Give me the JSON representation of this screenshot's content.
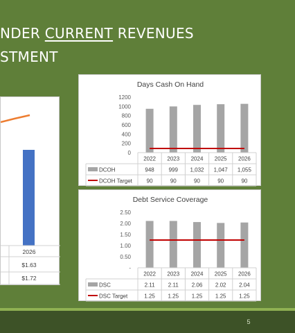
{
  "slide": {
    "title_line1_prefix": "NDER ",
    "title_line1_underlined": "CURRENT",
    "title_line1_suffix": " REVENUES",
    "title_line2": "STMENT",
    "page_number": "5"
  },
  "colors": {
    "background": "#5f7f39",
    "footer_bar": "#3d5227",
    "footer_stripe": "#8fb152",
    "bar_gray": "#a5a5a5",
    "target_red": "#c00000",
    "bar_blue": "#4472c4",
    "line_orange": "#ed7d31"
  },
  "chart_data": [
    {
      "type": "bar",
      "title": "",
      "partial": true,
      "bar_color": "#4472c4",
      "line_color": "#ed7d31",
      "categories": [
        "2026"
      ],
      "rows": [
        {
          "values": [
            "$1.63"
          ]
        },
        {
          "values": [
            "$1.72"
          ]
        }
      ]
    },
    {
      "type": "bar",
      "title": "Days Cash On Hand",
      "categories": [
        "2022",
        "2023",
        "2024",
        "2025",
        "2026"
      ],
      "ylim": [
        0,
        1200
      ],
      "yticks": [
        "0",
        "200",
        "400",
        "600",
        "800",
        "1000",
        "1200"
      ],
      "grid": false,
      "series": [
        {
          "name": "DCOH",
          "kind": "bar",
          "color": "#a5a5a5",
          "values": [
            948,
            999,
            1032,
            1047,
            1055
          ],
          "labels": [
            "948",
            "999",
            "1,032",
            "1,047",
            "1,055"
          ]
        },
        {
          "name": "DCOH Target",
          "kind": "line",
          "color": "#c00000",
          "values": [
            90,
            90,
            90,
            90,
            90
          ],
          "labels": [
            "90",
            "90",
            "90",
            "90",
            "90"
          ]
        }
      ]
    },
    {
      "type": "bar",
      "title": "Debt Service Coverage",
      "categories": [
        "2022",
        "2023",
        "2024",
        "2025",
        "2026"
      ],
      "ylim": [
        0,
        2.5
      ],
      "yticks": [
        "-",
        "0.50",
        "1.00",
        "1.50",
        "2.00",
        "2.50"
      ],
      "grid": false,
      "series": [
        {
          "name": "DSC",
          "kind": "bar",
          "color": "#a5a5a5",
          "values": [
            2.11,
            2.11,
            2.06,
            2.02,
            2.04
          ],
          "labels": [
            "2.11",
            "2.11",
            "2.06",
            "2.02",
            "2.04"
          ]
        },
        {
          "name": "DSC Target",
          "kind": "line",
          "color": "#c00000",
          "values": [
            1.25,
            1.25,
            1.25,
            1.25,
            1.25
          ],
          "labels": [
            "1.25",
            "1.25",
            "1.25",
            "1.25",
            "1.25"
          ]
        }
      ]
    }
  ]
}
